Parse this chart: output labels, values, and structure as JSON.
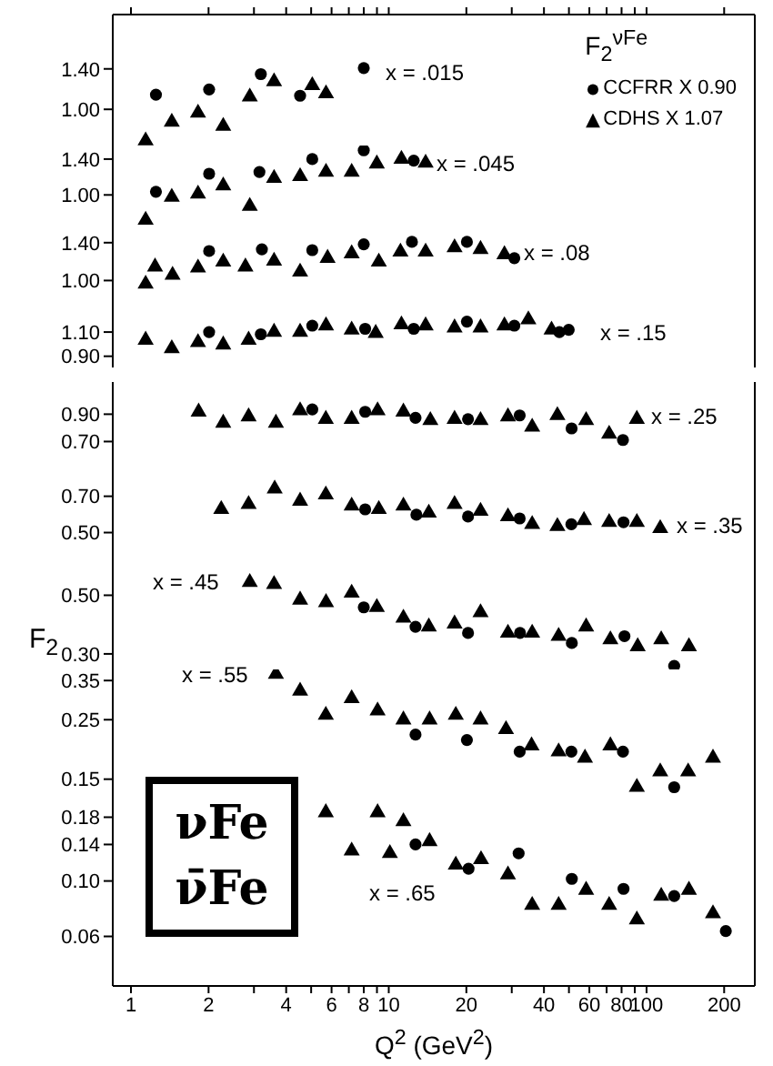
{
  "chart_data": [
    {
      "type": "scatter",
      "log": "xy",
      "xlim": [
        0.85,
        263
      ],
      "ylim": [
        0.74,
        2.2
      ],
      "tick_labels": "y",
      "legend": "right",
      "legend_title": "F$_{2}$$^{νFe}$",
      "annotations": [
        "x = .015"
      ],
      "xticks": [
        1,
        2,
        {
          "value": 3,
          "label": null
        },
        4,
        {
          "value": 5,
          "label": null
        },
        6,
        {
          "value": 7,
          "label": null
        },
        8,
        {
          "value": 9,
          "label": null
        },
        10,
        20,
        {
          "value": 30,
          "label": null
        },
        40,
        {
          "value": 50,
          "label": null
        },
        60,
        {
          "value": 70,
          "label": null
        },
        80,
        {
          "value": 90,
          "label": null
        },
        100,
        200
      ],
      "yticks": [
        {
          "value": 1.4,
          "label": "1.40"
        },
        {
          "value": 1.0,
          "label": "1.00"
        }
      ],
      "series": [
        {
          "name": "CCFRR X 0.90",
          "color": "#000000",
          "marker": "circle",
          "x": [
            1.25,
            2.01,
            3.19,
            4.53,
            8.0
          ],
          "values": [
            1.13,
            1.18,
            1.34,
            1.12,
            1.41
          ]
        },
        {
          "name": "CDHS X 1.07",
          "color": "#000000",
          "marker": "triangle",
          "x": [
            1.14,
            1.44,
            1.82,
            2.28,
            2.89,
            3.59,
            5.05,
            5.71
          ],
          "values": [
            0.77,
            0.9,
            0.97,
            0.87,
            1.11,
            1.26,
            1.22,
            1.14
          ]
        }
      ]
    },
    {
      "type": "scatter",
      "log": "xy",
      "xlim": [
        0.85,
        263
      ],
      "ylim": [
        0.75,
        1.59
      ],
      "tick_labels": "y",
      "annotations": [
        "x = .045"
      ],
      "yticks": [
        {
          "value": 1.4,
          "label": "1.40"
        },
        {
          "value": 1.0,
          "label": "1.00"
        }
      ],
      "series": [
        {
          "color": "#000000",
          "marker": "circle",
          "x": [
            1.25,
            2.01,
            3.15,
            5.05,
            8.0,
            12.5
          ],
          "values": [
            1.03,
            1.22,
            1.24,
            1.4,
            1.52,
            1.38
          ]
        },
        {
          "color": "#000000",
          "marker": "triangle",
          "x": [
            1.14,
            1.44,
            1.82,
            2.28,
            2.89,
            3.59,
            4.53,
            5.71,
            7.18,
            8.99,
            11.2,
            13.9
          ],
          "values": [
            0.79,
            0.98,
            1.01,
            1.09,
            0.9,
            1.17,
            1.19,
            1.24,
            1.24,
            1.34,
            1.4,
            1.35
          ]
        }
      ]
    },
    {
      "type": "scatter",
      "log": "xy",
      "xlim": [
        0.85,
        263
      ],
      "ylim": [
        0.8,
        1.63
      ],
      "tick_labels": "y",
      "annotations": [
        "x = .08"
      ],
      "yticks": [
        {
          "value": 1.4,
          "label": "1.40"
        },
        {
          "value": 1.0,
          "label": "1.00"
        }
      ],
      "series": [
        {
          "color": "#000000",
          "marker": "circle",
          "x": [
            2.01,
            3.22,
            5.05,
            8.0,
            12.3,
            20.1,
            30.7
          ],
          "values": [
            1.3,
            1.32,
            1.31,
            1.38,
            1.41,
            1.41,
            1.22
          ]
        },
        {
          "color": "#000000",
          "marker": "triangle",
          "x": [
            1.14,
            1.24,
            1.45,
            1.82,
            2.28,
            2.78,
            3.59,
            4.53,
            5.79,
            7.18,
            9.15,
            11.1,
            13.9,
            18.0,
            22.7,
            28.1
          ],
          "values": [
            0.97,
            1.13,
            1.05,
            1.12,
            1.18,
            1.13,
            1.19,
            1.08,
            1.22,
            1.27,
            1.18,
            1.29,
            1.29,
            1.34,
            1.32,
            1.26
          ]
        }
      ]
    },
    {
      "type": "scatter",
      "log": "xy",
      "xlim": [
        0.85,
        263
      ],
      "ylim": [
        0.82,
        1.37
      ],
      "tick_labels": "y",
      "annotations": [
        "x = .15"
      ],
      "yticks": [
        {
          "value": 1.1,
          "label": "1.10"
        },
        {
          "value": 0.9,
          "label": "0.90"
        }
      ],
      "series": [
        {
          "color": "#000000",
          "marker": "circle",
          "x": [
            2.01,
            3.19,
            5.05,
            8.1,
            12.5,
            20.1,
            30.7,
            45.9,
            49.9
          ],
          "values": [
            1.1,
            1.08,
            1.16,
            1.13,
            1.13,
            1.2,
            1.16,
            1.1,
            1.12
          ]
        },
        {
          "color": "#000000",
          "marker": "triangle",
          "x": [
            1.14,
            1.44,
            1.82,
            2.28,
            2.86,
            3.59,
            4.53,
            5.71,
            7.18,
            8.9,
            11.2,
            13.9,
            18.0,
            22.7,
            28.1,
            34.8,
            42.8
          ],
          "values": [
            1.03,
            0.96,
            1.01,
            0.99,
            1.03,
            1.1,
            1.1,
            1.16,
            1.12,
            1.09,
            1.17,
            1.16,
            1.14,
            1.14,
            1.16,
            1.22,
            1.12
          ]
        }
      ]
    },
    {
      "type": "scatter",
      "log": "xy",
      "xlim": [
        0.85,
        263
      ],
      "ylim": [
        0.57,
        1.21
      ],
      "tick_labels": "y",
      "annotations": [
        "x = .25"
      ],
      "yticks": [
        {
          "value": 0.9,
          "label": "0.90"
        },
        {
          "value": 0.7,
          "label": "0.70"
        }
      ],
      "series": [
        {
          "color": "#000000",
          "marker": "circle",
          "x": [
            5.05,
            8.1,
            12.7,
            20.3,
            32.2,
            51.2,
            81.0
          ],
          "values": [
            0.94,
            0.92,
            0.87,
            0.86,
            0.89,
            0.79,
            0.71
          ]
        },
        {
          "color": "#000000",
          "marker": "triangle",
          "x": [
            1.83,
            2.28,
            2.86,
            3.65,
            4.53,
            5.7,
            7.18,
            9.05,
            11.4,
            14.5,
            18.0,
            22.7,
            29.0,
            36.0,
            45.1,
            58.3,
            71.6,
            91.7
          ],
          "values": [
            0.92,
            0.83,
            0.88,
            0.83,
            0.93,
            0.86,
            0.86,
            0.93,
            0.92,
            0.85,
            0.86,
            0.85,
            0.88,
            0.8,
            0.89,
            0.85,
            0.75,
            0.86
          ]
        }
      ]
    },
    {
      "type": "scatter",
      "log": "xy",
      "xlim": [
        0.85,
        263
      ],
      "ylim": [
        0.4,
        0.945
      ],
      "tick_labels": "y",
      "annotations": [
        "x = .35"
      ],
      "yticks": [
        {
          "value": 0.7,
          "label": "0.70"
        },
        {
          "value": 0.5,
          "label": "0.50"
        }
      ],
      "series": [
        {
          "color": "#000000",
          "marker": "circle",
          "x": [
            8.1,
            12.8,
            20.3,
            32.2,
            51.1,
            81.4
          ],
          "values": [
            0.62,
            0.59,
            0.58,
            0.57,
            0.54,
            0.55
          ]
        },
        {
          "color": "#000000",
          "marker": "triangle",
          "x": [
            2.24,
            2.86,
            3.61,
            4.53,
            5.7,
            7.18,
            9.15,
            11.4,
            14.3,
            18.0,
            22.7,
            29.0,
            36.0,
            45.1,
            57.2,
            71.6,
            91.7,
            113
          ],
          "values": [
            0.62,
            0.65,
            0.75,
            0.67,
            0.71,
            0.64,
            0.62,
            0.64,
            0.6,
            0.65,
            0.61,
            0.58,
            0.54,
            0.53,
            0.56,
            0.55,
            0.55,
            0.52
          ]
        }
      ]
    },
    {
      "type": "scatter",
      "log": "xy",
      "xlim": [
        0.85,
        263
      ],
      "ylim": [
        0.262,
        0.7
      ],
      "tick_labels": "y",
      "ylabel": "F$_{2}$",
      "annotations": [
        "x = .45"
      ],
      "yticks": [
        {
          "value": 0.5,
          "label": "0.50"
        },
        {
          "value": 0.3,
          "label": "0.30"
        }
      ],
      "series": [
        {
          "color": "#000000",
          "marker": "circle",
          "x": [
            8.0,
            12.7,
            20.3,
            32.3,
            51.3,
            82.1,
            128
          ],
          "values": [
            0.45,
            0.38,
            0.36,
            0.36,
            0.33,
            0.35,
            0.27
          ]
        },
        {
          "color": "#000000",
          "marker": "triangle",
          "x": [
            2.89,
            3.59,
            4.53,
            5.71,
            7.18,
            8.99,
            11.4,
            14.3,
            18.0,
            22.7,
            29.0,
            36.0,
            45.6,
            58.3,
            72.4,
            92.4,
            114,
            146
          ],
          "values": [
            0.56,
            0.55,
            0.48,
            0.47,
            0.51,
            0.45,
            0.41,
            0.38,
            0.39,
            0.43,
            0.36,
            0.36,
            0.35,
            0.38,
            0.34,
            0.32,
            0.34,
            0.32
          ]
        }
      ]
    },
    {
      "type": "scatter",
      "log": "xy",
      "xlim": [
        0.85,
        263
      ],
      "ylim": [
        0.131,
        0.385
      ],
      "tick_labels": "y",
      "annotations": [
        "x = .55"
      ],
      "yticks": [
        {
          "value": 0.35,
          "label": "0.35"
        },
        {
          "value": 0.25,
          "label": "0.25"
        },
        {
          "value": 0.15,
          "label": "0.15"
        }
      ],
      "series": [
        {
          "color": "#000000",
          "marker": "circle",
          "x": [
            12.7,
            20.1,
            32.2,
            51.1,
            81.0,
            128
          ],
          "values": [
            0.22,
            0.21,
            0.19,
            0.19,
            0.19,
            0.14
          ]
        },
        {
          "color": "#000000",
          "marker": "triangle",
          "x": [
            3.65,
            4.53,
            5.7,
            7.18,
            9.05,
            11.4,
            14.4,
            18.2,
            22.7,
            28.5,
            35.8,
            45.6,
            57.7,
            72.4,
            91.7,
            113,
            145,
            181
          ],
          "values": [
            0.37,
            0.32,
            0.26,
            0.3,
            0.27,
            0.25,
            0.25,
            0.26,
            0.25,
            0.23,
            0.2,
            0.19,
            0.18,
            0.2,
            0.14,
            0.16,
            0.16,
            0.18
          ]
        }
      ]
    },
    {
      "type": "scatter",
      "log": "xy",
      "xlim": [
        0.85,
        263
      ],
      "ylim": [
        0.038,
        0.221
      ],
      "xlabel": "Q$^{2}$ (GeV$^{2}$)",
      "annotations": [
        "x = .65",
        "νFe",
        "ν̄Fe"
      ],
      "xticks": [
        1,
        2,
        {
          "value": 3,
          "label": null
        },
        4,
        {
          "value": 5,
          "label": null
        },
        6,
        {
          "value": 7,
          "label": null
        },
        8,
        {
          "value": 9,
          "label": null
        },
        10,
        20,
        {
          "value": 30,
          "label": null
        },
        40,
        {
          "value": 50,
          "label": null
        },
        60,
        {
          "value": 70,
          "label": null
        },
        80,
        {
          "value": 90,
          "label": null
        },
        100,
        200
      ],
      "yticks": [
        {
          "value": 0.18,
          "label": "0.18"
        },
        {
          "value": 0.14,
          "label": "0.14"
        },
        {
          "value": 0.1,
          "label": "0.10"
        },
        {
          "value": 0.06,
          "label": "0.06"
        }
      ],
      "series": [
        {
          "color": "#000000",
          "marker": "circle",
          "x": [
            12.7,
            20.4,
            31.9,
            51.3,
            81.4,
            128,
            203
          ],
          "values": [
            0.14,
            0.112,
            0.129,
            0.102,
            0.093,
            0.087,
            0.063
          ]
        },
        {
          "color": "#000000",
          "marker": "triangle",
          "x": [
            5.7,
            7.18,
            9.05,
            10.1,
            11.4,
            14.4,
            18.2,
            22.8,
            29.0,
            36.0,
            45.6,
            58.3,
            71.6,
            91.7,
            114,
            146,
            181
          ],
          "values": [
            0.188,
            0.132,
            0.188,
            0.129,
            0.173,
            0.144,
            0.116,
            0.122,
            0.106,
            0.08,
            0.08,
            0.092,
            0.08,
            0.07,
            0.087,
            0.092,
            0.074
          ]
        }
      ]
    }
  ]
}
